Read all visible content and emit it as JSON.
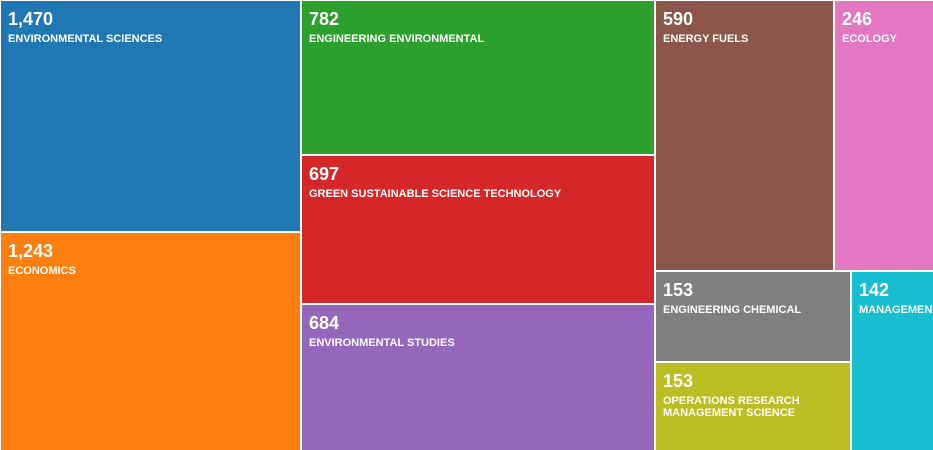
{
  "chart_data": {
    "type": "treemap",
    "title": "",
    "items": [
      {
        "name": "ENVIRONMENTAL SCIENCES",
        "value": 1470,
        "value_label": "1,470",
        "color": "#1f77b4"
      },
      {
        "name": "ECONOMICS",
        "value": 1243,
        "value_label": "1,243",
        "color": "#ff7f0e"
      },
      {
        "name": "ENGINEERING ENVIRONMENTAL",
        "value": 782,
        "value_label": "782",
        "color": "#2ca02c"
      },
      {
        "name": "GREEN SUSTAINABLE SCIENCE TECHNOLOGY",
        "value": 697,
        "value_label": "697",
        "color": "#d62728"
      },
      {
        "name": "ENVIRONMENTAL STUDIES",
        "value": 684,
        "value_label": "684",
        "color": "#9467bd"
      },
      {
        "name": "ENERGY FUELS",
        "value": 590,
        "value_label": "590",
        "color": "#8c564b"
      },
      {
        "name": "ECOLOGY",
        "value": 246,
        "value_label": "246",
        "color": "#e377c2"
      },
      {
        "name": "ENGINEERING CHEMICAL",
        "value": 153,
        "value_label": "153",
        "color": "#7f7f7f"
      },
      {
        "name": "OPERATIONS RESEARCH MANAGEMENT SCIENCE",
        "value": 153,
        "value_label": "153",
        "color": "#bcbd22"
      },
      {
        "name": "MANAGEMENT",
        "value": 142,
        "value_label": "142",
        "color": "#17becf"
      }
    ]
  }
}
